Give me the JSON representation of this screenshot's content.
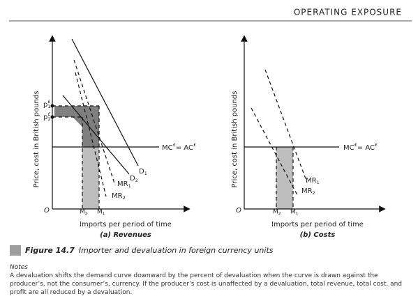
{
  "header": {
    "title": "OPERATING EXPOSURE"
  },
  "panels": [
    {
      "y_axis_label": "Price, cost in British pounds",
      "origin": "O",
      "price_labels": [
        {
          "text": "p",
          "sup": "£",
          "sub": "1"
        },
        {
          "text": "p",
          "sup": "£",
          "sub": "2"
        }
      ],
      "cost_label": {
        "text": "MC",
        "sup": "£",
        "text2": " = AC",
        "sup2": "£"
      },
      "curve_labels": [
        {
          "text": "D",
          "sub": "1"
        },
        {
          "text": "D",
          "sub": "2"
        },
        {
          "text": "MR",
          "sub": "1"
        },
        {
          "text": "MR",
          "sub": "2"
        }
      ],
      "quantity_labels": [
        {
          "text": "M",
          "sub": "2"
        },
        {
          "text": "M",
          "sub": "1"
        }
      ],
      "x_axis_label": "Imports per period of time",
      "panel_title": "(a) Revenues"
    },
    {
      "y_axis_label": "Price, cost in British pounds",
      "origin": "O",
      "cost_label": {
        "text": "MC",
        "sup": "£",
        "text2": " = AC",
        "sup2": "£"
      },
      "curve_labels": [
        {
          "text": "MR",
          "sub": "1"
        },
        {
          "text": "MR",
          "sub": "2"
        }
      ],
      "quantity_labels": [
        {
          "text": "M",
          "sub": "2"
        },
        {
          "text": "M",
          "sub": "1"
        }
      ],
      "x_axis_label": "Imports per period of time",
      "panel_title": "(b) Costs"
    }
  ],
  "caption": {
    "number": "Figure 14.7",
    "text": "Importer and devaluation in foreign currency units"
  },
  "notes": {
    "heading": "Notes",
    "text": "A devaluation shifts the demand curve downward by the percent of devaluation when the curve is drawn against the producer’s, not the consumer’s, currency. If the producer’s cost is unaffected by a devaluation, total revenue, total cost, and profit are all reduced by a devaluation."
  }
}
